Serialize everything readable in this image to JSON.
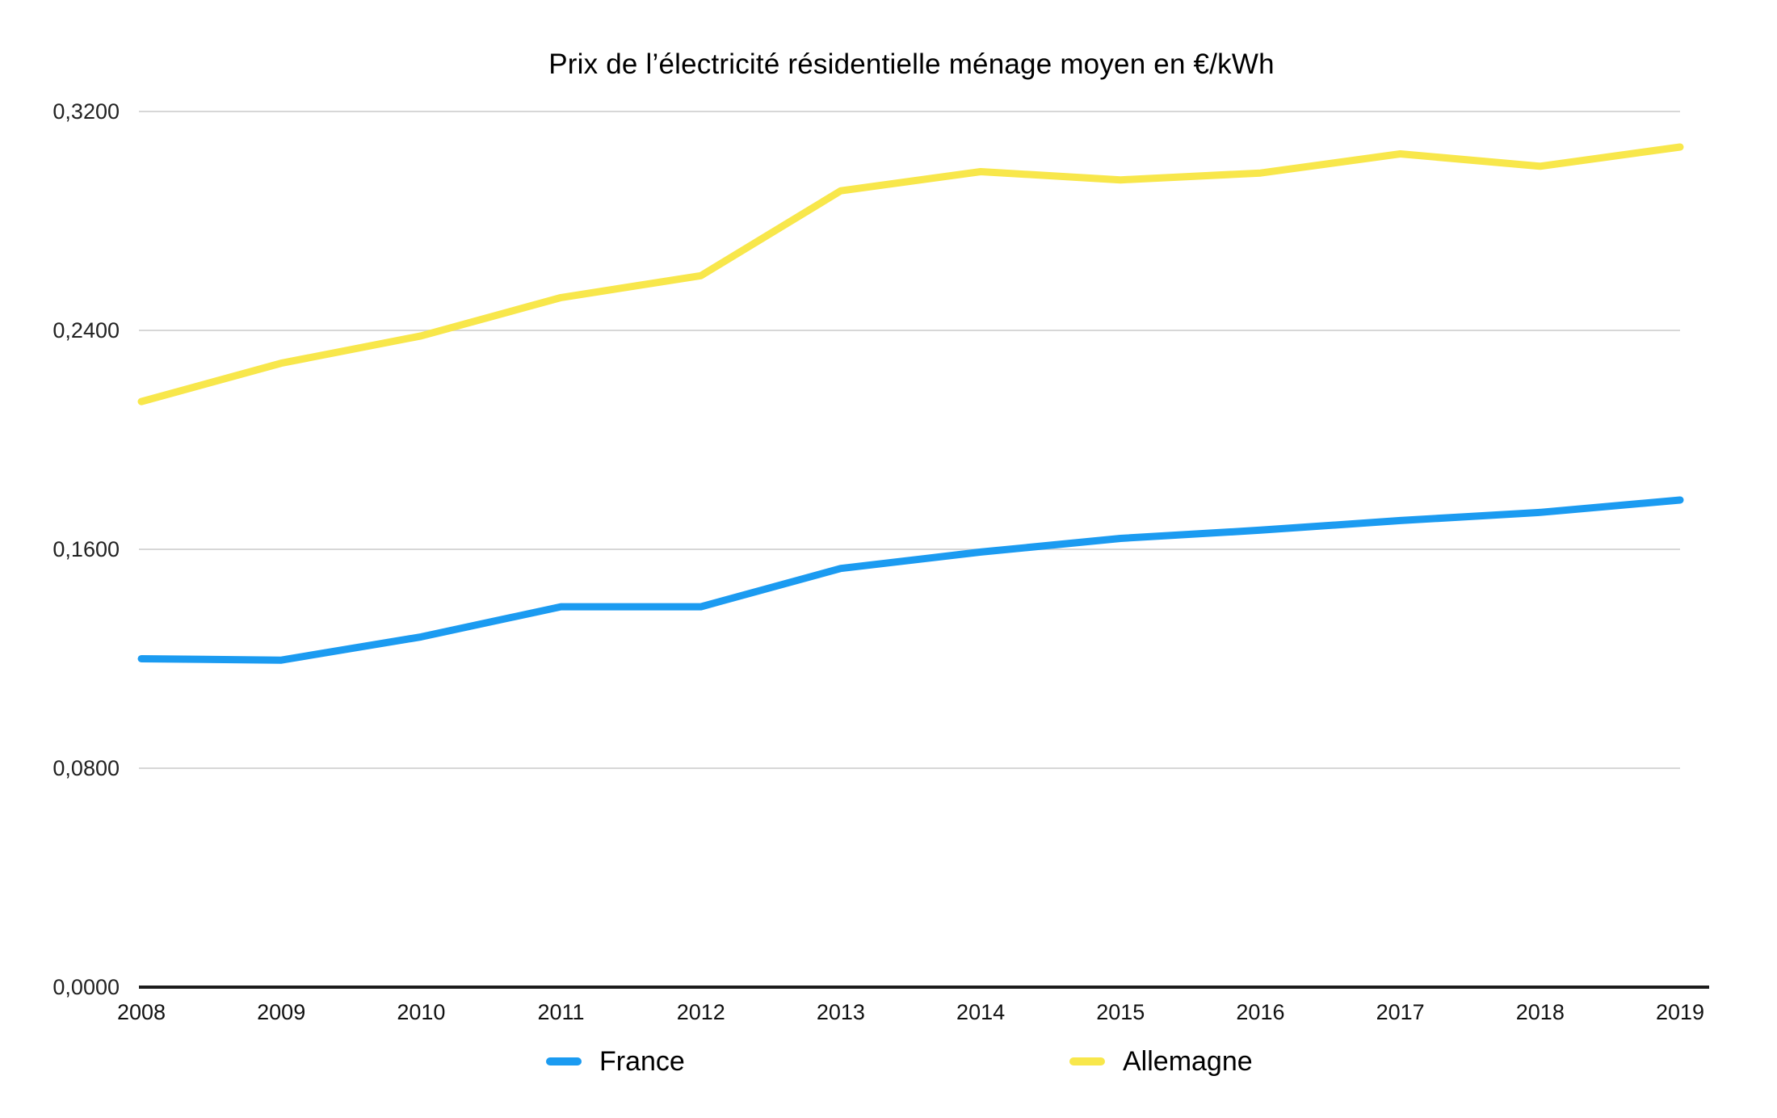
{
  "chart_data": {
    "type": "line",
    "title": "Prix de l’électricité résidentielle ménage moyen en €/kWh",
    "xlabel": "",
    "ylabel": "",
    "x": [
      2008,
      2009,
      2010,
      2011,
      2012,
      2013,
      2014,
      2015,
      2016,
      2017,
      2018,
      2019
    ],
    "series": [
      {
        "name": "France",
        "color": "#1b9bf1",
        "values": [
          0.12,
          0.1195,
          0.128,
          0.139,
          0.139,
          0.153,
          0.159,
          0.164,
          0.167,
          0.1705,
          0.1735,
          0.178
        ]
      },
      {
        "name": "Allemagne",
        "color": "#f8e74b",
        "values": [
          0.214,
          0.228,
          0.238,
          0.252,
          0.26,
          0.291,
          0.298,
          0.295,
          0.2975,
          0.3045,
          0.3,
          0.307
        ]
      }
    ],
    "ylim": [
      0.0,
      0.32
    ],
    "yticks": [
      {
        "value": 0.32,
        "label": "0,3200"
      },
      {
        "value": 0.24,
        "label": "0,2400"
      },
      {
        "value": 0.16,
        "label": "0,1600"
      },
      {
        "value": 0.08,
        "label": "0,0800"
      },
      {
        "value": 0.0,
        "label": "0,0000"
      }
    ],
    "grid": true,
    "legend_position": "bottom"
  },
  "style": {
    "gridline_color": "#d7d7d7",
    "axis_color": "#1c1c1c",
    "tick_label_color": "#222222",
    "background": "#ffffff"
  }
}
